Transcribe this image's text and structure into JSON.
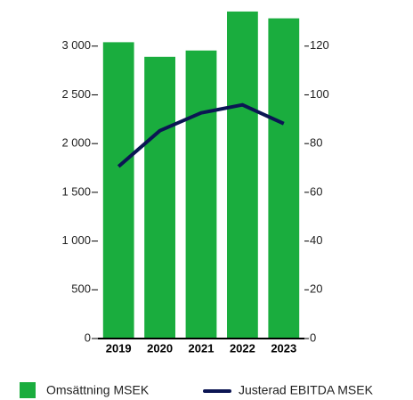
{
  "chart_data": {
    "type": "bar-line",
    "categories": [
      "2019",
      "2020",
      "2021",
      "2022",
      "2023"
    ],
    "series": [
      {
        "name": "Omsättning MSEK",
        "type": "bar",
        "color": "#1aad3e",
        "values": [
          3040,
          2890,
          2955,
          3355,
          3285
        ]
      },
      {
        "name": "Justerad EBITDA MSEK",
        "type": "line",
        "axis": "y2",
        "color": "#0b1553",
        "values": [
          70.6,
          85.3,
          92.6,
          95.9,
          88.2
        ]
      }
    ],
    "ylim": [
      0,
      3400
    ],
    "yticks": [
      0,
      500,
      {
        "value": 1000,
        "label": "1 000"
      },
      {
        "value": 1500,
        "label": "1 500"
      },
      {
        "value": 2000,
        "label": "2 000"
      },
      {
        "value": 2500,
        "label": "2 500"
      },
      {
        "value": 3000,
        "label": "3 000"
      }
    ],
    "y2lim": [
      0,
      136
    ],
    "y2ticks": [
      0,
      20,
      40,
      60,
      80,
      100,
      120
    ],
    "grid": false,
    "legend": "bottom"
  }
}
